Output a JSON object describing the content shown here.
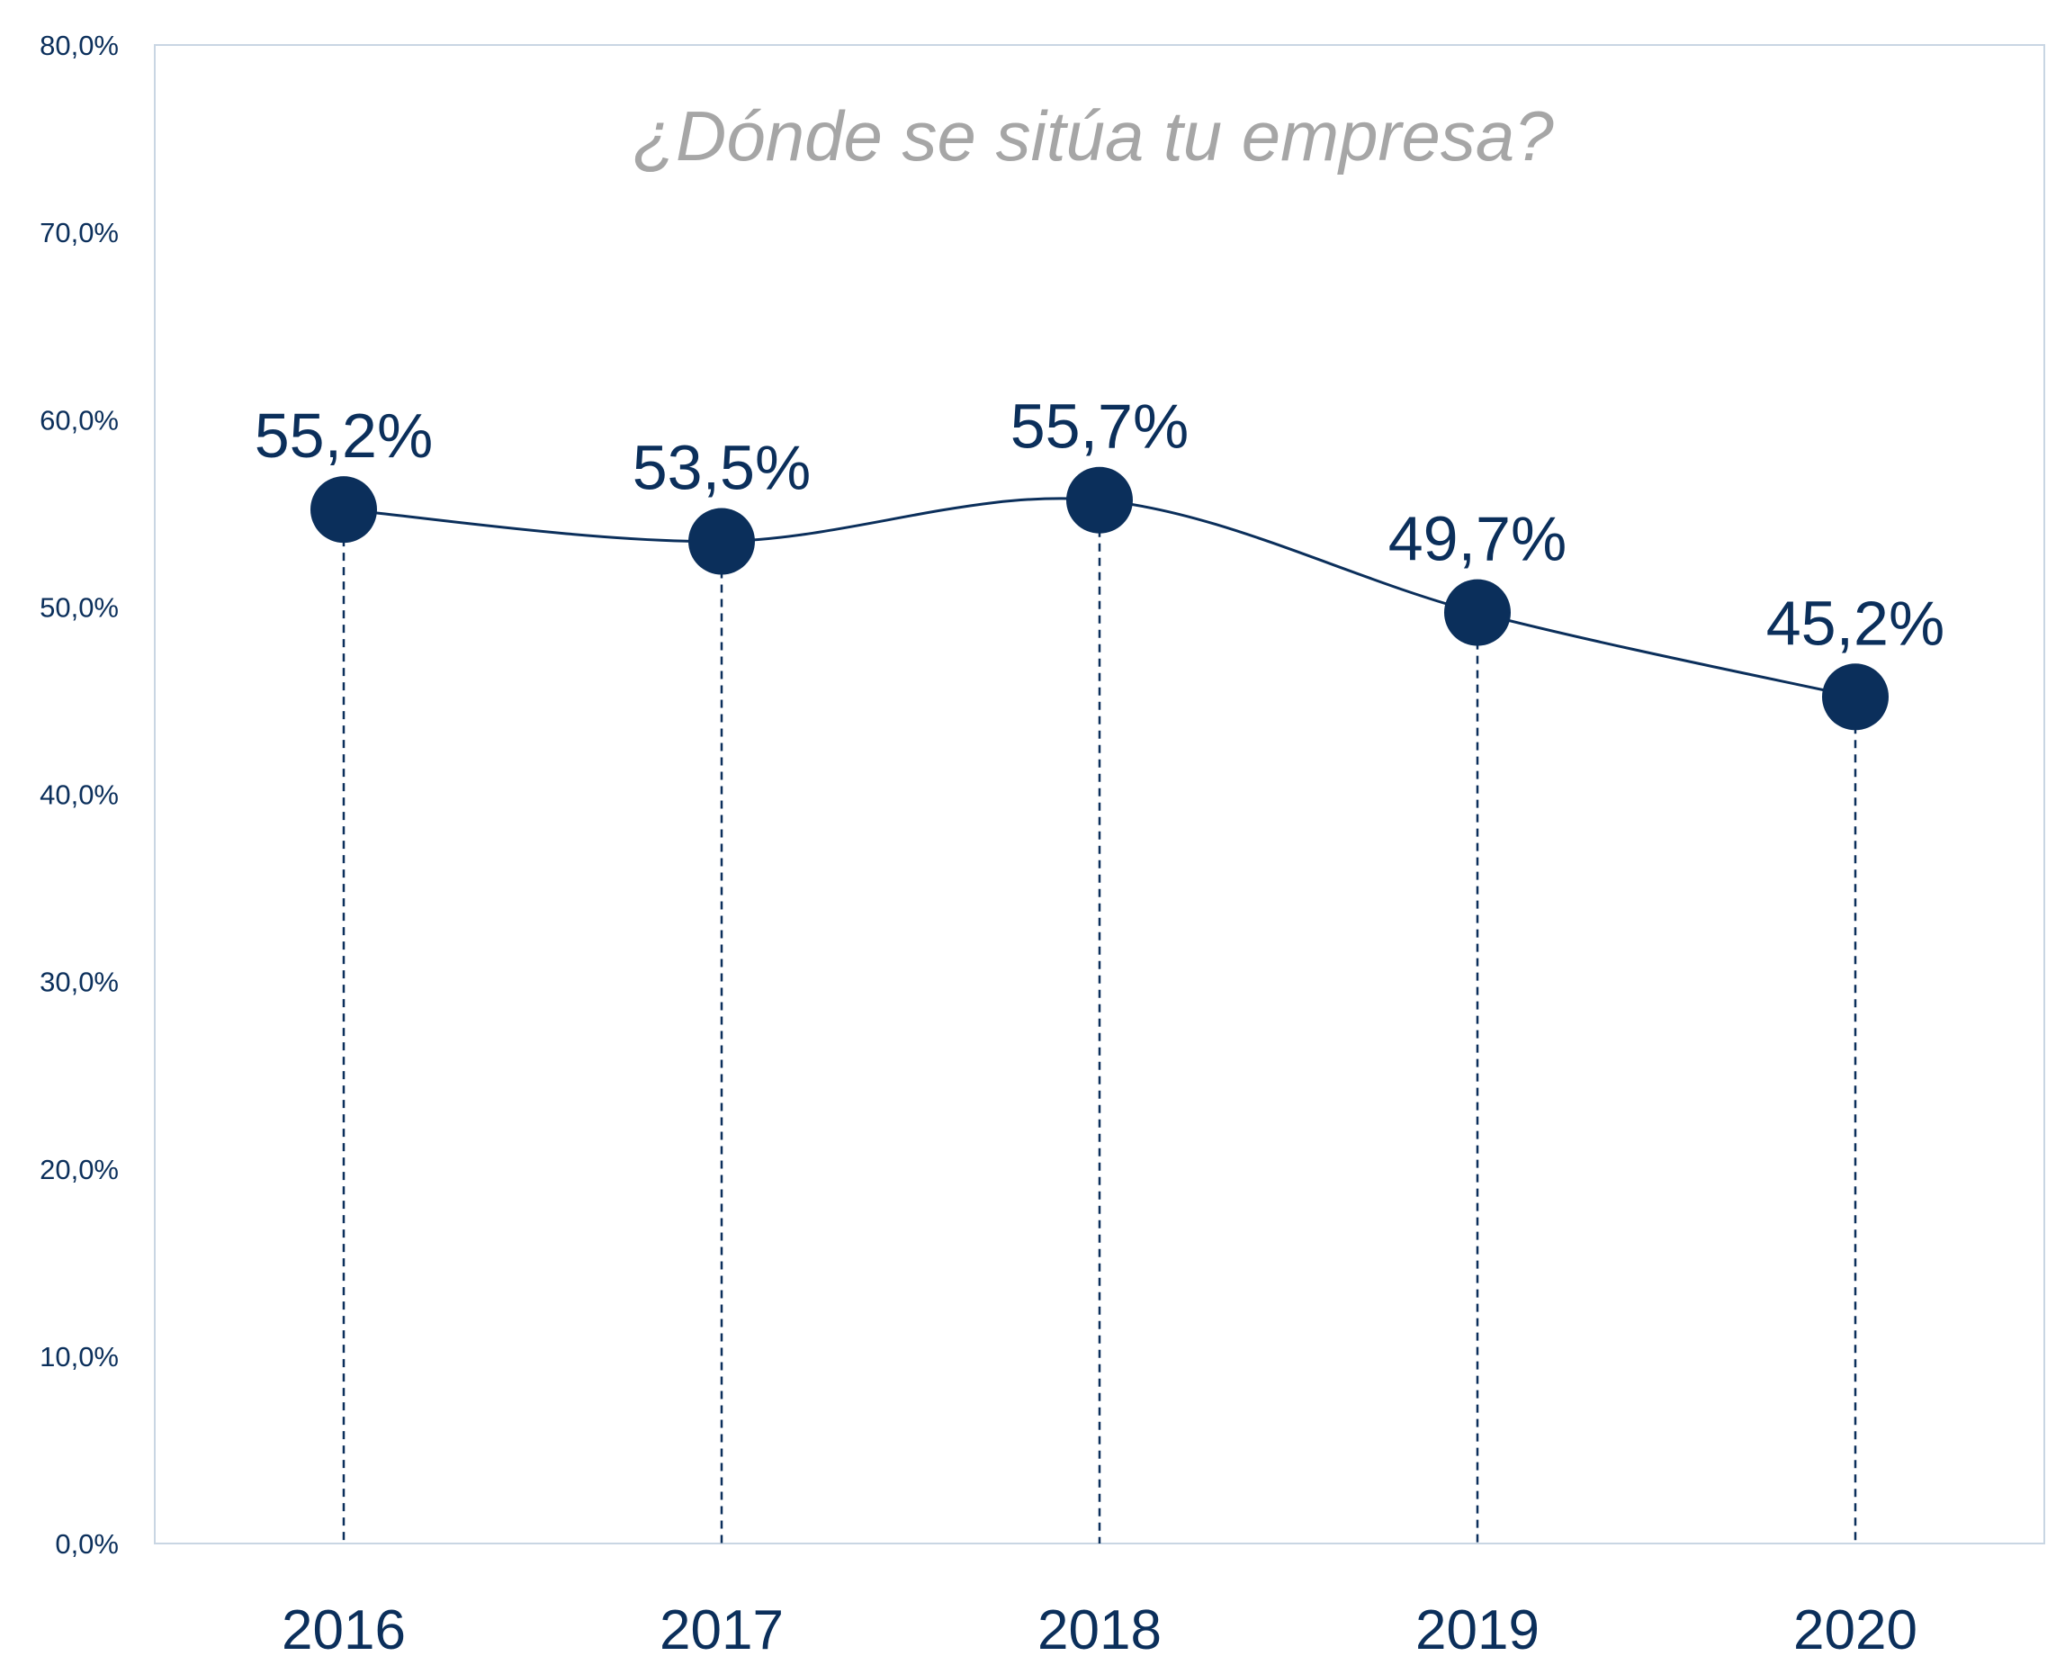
{
  "chart_data": {
    "type": "line",
    "title": "¿Dónde se sitúa tu empresa?",
    "categories": [
      "2016",
      "2017",
      "2018",
      "2019",
      "2020"
    ],
    "values": [
      55.2,
      53.5,
      55.7,
      49.7,
      45.2
    ],
    "data_labels": [
      "55,2%",
      "53,5%",
      "55,7%",
      "49,7%",
      "45,2%"
    ],
    "ylim": [
      0,
      80
    ],
    "y_ticks": [
      0,
      10,
      20,
      30,
      40,
      50,
      60,
      70,
      80
    ],
    "y_tick_labels": [
      "0,0%",
      "10,0%",
      "20,0%",
      "30,0%",
      "40,0%",
      "50,0%",
      "60,0%",
      "70,0%",
      "80,0%"
    ],
    "smooth_line": true,
    "drop_lines": "dashed",
    "grid": false,
    "legend": "none",
    "colors": {
      "series": "#0b2f5b",
      "title": "#a6a6a6",
      "axis": "#c9d6e3"
    }
  }
}
